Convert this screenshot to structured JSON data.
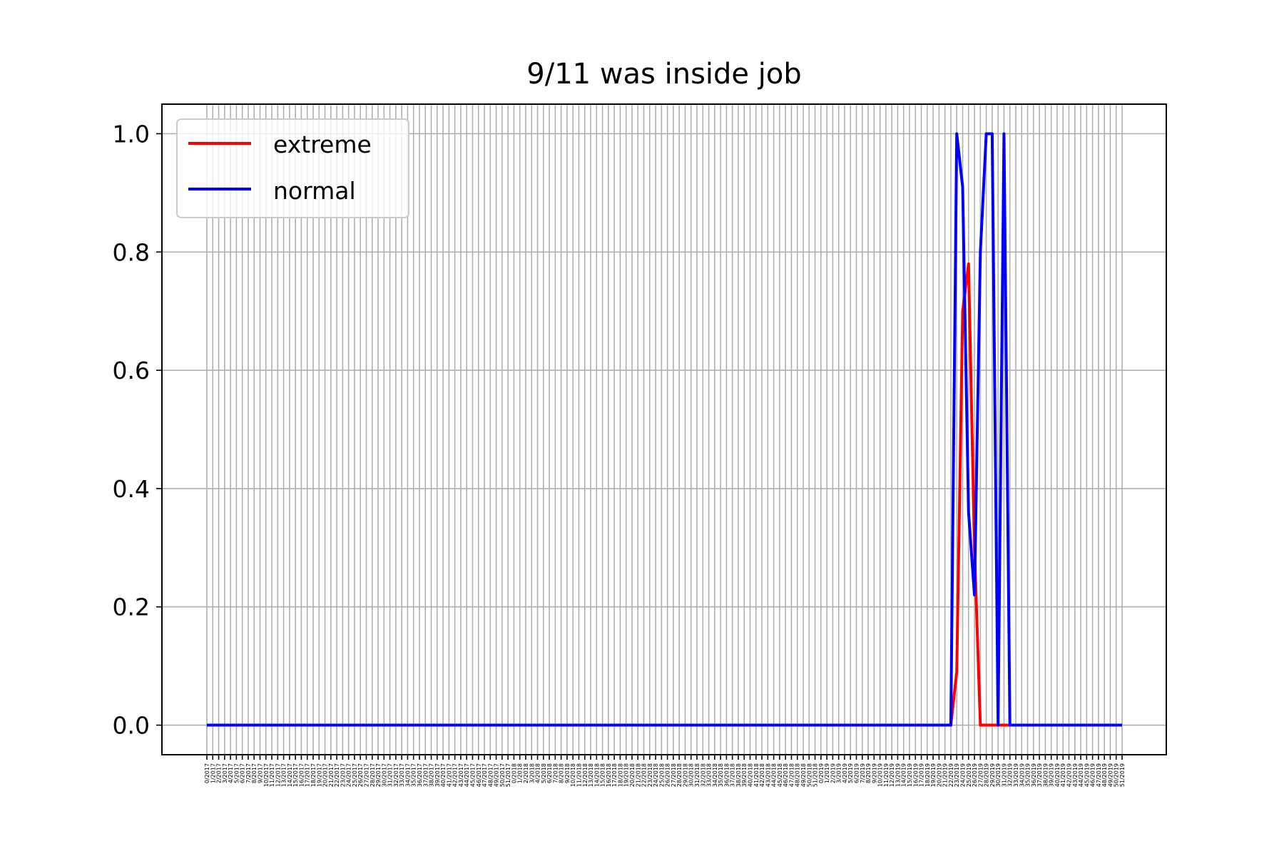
{
  "chart_data": {
    "type": "line",
    "title": "9/11 was inside job",
    "xlabel": "",
    "ylabel": "",
    "x_first_week": 0,
    "x_week_count": 156,
    "x_label_format": "week/year",
    "x_start_year": 2017,
    "x_weeks_per_year": 52,
    "ylim": [
      -0.05,
      1.05
    ],
    "yticks": [
      "0.0",
      "0.2",
      "0.4",
      "0.6",
      "0.8",
      "1.0"
    ],
    "ytick_values": [
      0.0,
      0.2,
      0.4,
      0.6,
      0.8,
      1.0
    ],
    "grid": true,
    "legend_position": "top-left",
    "series": [
      {
        "name": "extreme",
        "color": "#ff0000",
        "points": [
          [
            0,
            0
          ],
          [
            126,
            0
          ],
          [
            127,
            0.09
          ],
          [
            128,
            0.7
          ],
          [
            129,
            0.78
          ],
          [
            130,
            0.3
          ],
          [
            131,
            0
          ],
          [
            132,
            0
          ],
          [
            133,
            0
          ],
          [
            134,
            0
          ],
          [
            155,
            0
          ]
        ]
      },
      {
        "name": "normal",
        "color": "#0000ff",
        "points": [
          [
            0,
            0
          ],
          [
            126,
            0
          ],
          [
            127,
            1.0
          ],
          [
            128,
            0.91
          ],
          [
            129,
            0.36
          ],
          [
            130,
            0.22
          ],
          [
            131,
            0.8
          ],
          [
            132,
            1.0
          ],
          [
            133,
            1.0
          ],
          [
            134,
            0
          ],
          [
            135,
            1.0
          ],
          [
            136,
            0
          ],
          [
            155,
            0
          ]
        ]
      }
    ]
  }
}
